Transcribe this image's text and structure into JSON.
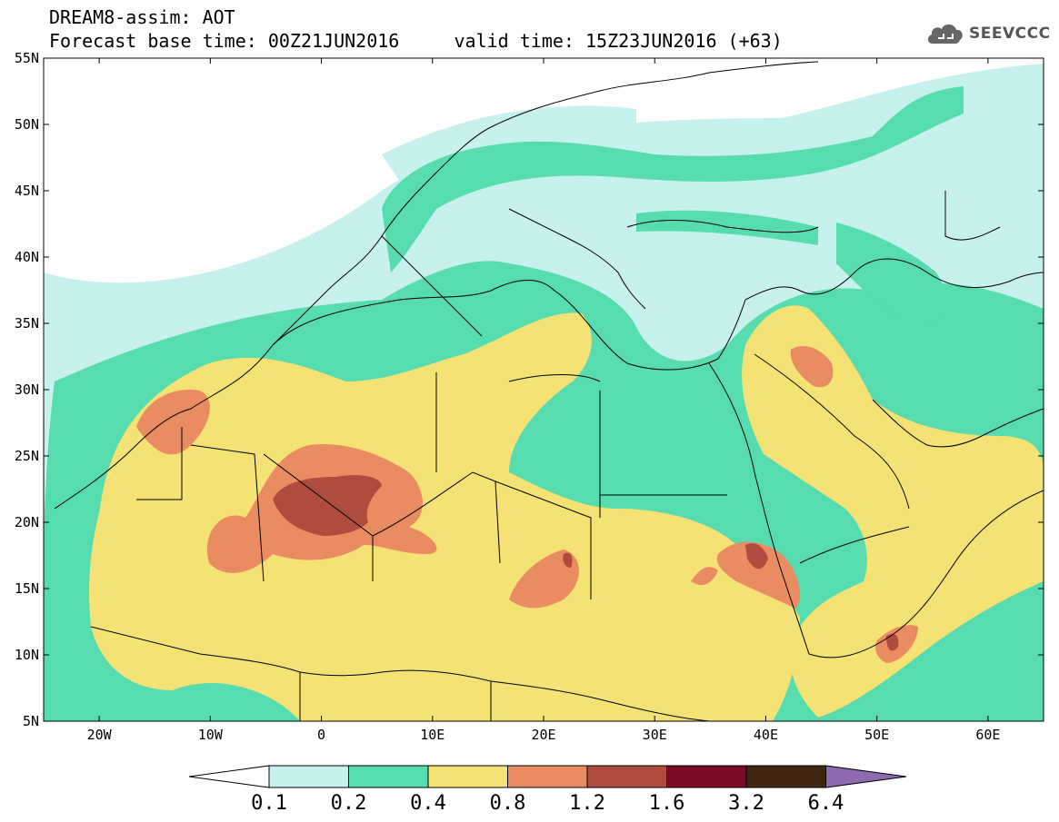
{
  "header": {
    "title_line1": "DREAM8-assim: AOT",
    "title_line2": "Forecast base time: 00Z21JUN2016     valid time: 15Z23JUN2016 (+63)"
  },
  "logo": {
    "text": "SEEVCCC",
    "icon": "cloud-icon"
  },
  "map": {
    "lat_labels": [
      "55N",
      "50N",
      "45N",
      "40N",
      "35N",
      "30N",
      "25N",
      "20N",
      "15N",
      "10N",
      "5N"
    ],
    "lon_labels": [
      "20W",
      "10W",
      "0",
      "10E",
      "20E",
      "30E",
      "40E",
      "50E",
      "60E"
    ],
    "colors": {
      "ocean": "#ffffff",
      "c01": "#c6f1ec",
      "c02": "#56dcae",
      "c04": "#f5e275",
      "c08": "#ea8c62",
      "c12": "#b04b40",
      "c16": "#7c0b26",
      "c32": "#402610",
      "c64": "#8e6ab0",
      "border": "#000000"
    }
  },
  "colorbar": {
    "labels": [
      "0.1",
      "0.2",
      "0.4",
      "0.8",
      "1.2",
      "1.6",
      "3.2",
      "6.4"
    ],
    "colors": [
      "#c6f1ec",
      "#56dcae",
      "#f5e275",
      "#ea8c62",
      "#b04b40",
      "#7c0b26",
      "#402610"
    ],
    "under_color": "#ffffff",
    "over_color": "#8e6ab0"
  }
}
